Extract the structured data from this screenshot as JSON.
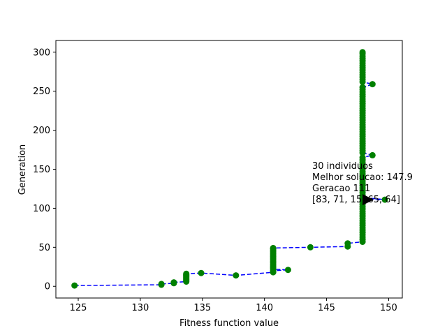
{
  "chart_data": {
    "type": "scatter",
    "xlabel": "Fitness function value",
    "ylabel": "Generation",
    "xlim": [
      123.2,
      151.1
    ],
    "ylim": [
      -15,
      315
    ],
    "xticks": [
      125,
      130,
      135,
      140,
      145,
      150
    ],
    "yticks": [
      0,
      50,
      100,
      150,
      200,
      250,
      300
    ],
    "grid": false,
    "line_color": "#0000ff",
    "marker_color": "#008000",
    "line_style": "dashed",
    "series": [
      {
        "points": [
          [
            124.7,
            1
          ],
          [
            131.7,
            2
          ],
          [
            131.7,
            3
          ],
          [
            132.7,
            4
          ],
          [
            132.7,
            5
          ],
          [
            133.7,
            6
          ],
          [
            133.7,
            7
          ],
          [
            133.7,
            8
          ],
          [
            133.7,
            9
          ],
          [
            133.7,
            10
          ],
          [
            133.7,
            11
          ],
          [
            133.7,
            12
          ],
          [
            133.7,
            13
          ],
          [
            133.7,
            14
          ],
          [
            133.7,
            15
          ],
          [
            133.7,
            16
          ],
          [
            134.9,
            17
          ],
          [
            137.7,
            14
          ],
          [
            140.7,
            18
          ],
          [
            140.7,
            19
          ],
          [
            140.7,
            20
          ],
          [
            141.9,
            21
          ],
          [
            140.7,
            22
          ],
          [
            140.7,
            24
          ],
          [
            140.7,
            26
          ],
          [
            140.7,
            28
          ],
          [
            140.7,
            30
          ],
          [
            140.7,
            32
          ],
          [
            140.7,
            34
          ],
          [
            140.7,
            36
          ],
          [
            140.7,
            38
          ],
          [
            140.7,
            40
          ],
          [
            140.7,
            42
          ],
          [
            140.7,
            44
          ],
          [
            140.7,
            46
          ],
          [
            140.7,
            48
          ],
          [
            140.7,
            49
          ],
          [
            143.7,
            50
          ],
          [
            146.7,
            51
          ],
          [
            146.7,
            55
          ],
          [
            147.9,
            57
          ],
          [
            147.9,
            60
          ],
          [
            147.9,
            63
          ],
          [
            147.9,
            66
          ],
          [
            147.9,
            69
          ],
          [
            147.9,
            72
          ],
          [
            147.9,
            75
          ],
          [
            147.9,
            78
          ],
          [
            147.9,
            81
          ],
          [
            147.9,
            84
          ],
          [
            147.9,
            87
          ],
          [
            147.9,
            90
          ],
          [
            147.9,
            93
          ],
          [
            147.9,
            96
          ],
          [
            147.9,
            99
          ],
          [
            147.9,
            102
          ],
          [
            147.9,
            105
          ],
          [
            147.9,
            108
          ],
          [
            147.9,
            111
          ],
          [
            149.7,
            111
          ],
          [
            147.9,
            114
          ],
          [
            147.9,
            117
          ],
          [
            147.9,
            120
          ],
          [
            147.9,
            123
          ],
          [
            147.9,
            126
          ],
          [
            147.9,
            129
          ],
          [
            147.9,
            132
          ],
          [
            147.9,
            135
          ],
          [
            147.9,
            138
          ],
          [
            147.9,
            141
          ],
          [
            147.9,
            144
          ],
          [
            147.9,
            147
          ],
          [
            147.9,
            150
          ],
          [
            147.9,
            153
          ],
          [
            147.9,
            156
          ],
          [
            147.9,
            159
          ],
          [
            147.9,
            162
          ],
          [
            147.9,
            165
          ],
          [
            148.7,
            168
          ],
          [
            147.9,
            171
          ],
          [
            147.9,
            174
          ],
          [
            147.9,
            177
          ],
          [
            147.9,
            180
          ],
          [
            147.9,
            183
          ],
          [
            147.9,
            186
          ],
          [
            147.9,
            189
          ],
          [
            147.9,
            192
          ],
          [
            147.9,
            195
          ],
          [
            147.9,
            198
          ],
          [
            147.9,
            201
          ],
          [
            147.9,
            204
          ],
          [
            147.9,
            207
          ],
          [
            147.9,
            210
          ],
          [
            147.9,
            213
          ],
          [
            147.9,
            216
          ],
          [
            147.9,
            219
          ],
          [
            147.9,
            222
          ],
          [
            147.9,
            225
          ],
          [
            147.9,
            228
          ],
          [
            147.9,
            231
          ],
          [
            147.9,
            234
          ],
          [
            147.9,
            237
          ],
          [
            147.9,
            240
          ],
          [
            147.9,
            243
          ],
          [
            147.9,
            246
          ],
          [
            147.9,
            249
          ],
          [
            147.9,
            252
          ],
          [
            147.9,
            255
          ],
          [
            148.7,
            259
          ],
          [
            147.9,
            262
          ],
          [
            147.9,
            265
          ],
          [
            147.9,
            268
          ],
          [
            147.9,
            271
          ],
          [
            147.9,
            274
          ],
          [
            147.9,
            277
          ],
          [
            147.9,
            280
          ],
          [
            147.9,
            283
          ],
          [
            147.9,
            286
          ],
          [
            147.9,
            289
          ],
          [
            147.9,
            292
          ],
          [
            147.9,
            295
          ],
          [
            147.9,
            298
          ],
          [
            147.9,
            300
          ]
        ]
      }
    ],
    "annotation": {
      "lines": [
        "30 individuos",
        "Melhor solucao: 147.9",
        "Geracao 111",
        "[83, 71, 15, 65, 64]"
      ],
      "point": [
        147.9,
        111
      ]
    }
  }
}
